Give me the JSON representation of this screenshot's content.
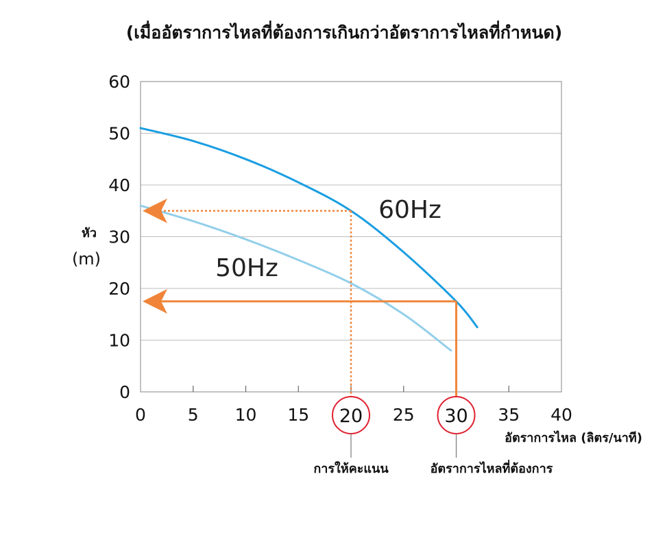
{
  "chart_data": {
    "type": "line",
    "title": "(เมื่ออัตราการไหลที่ต้องการเกินกว่าอัตราการไหลที่กำหนด)",
    "ylabel": "หัว",
    "yunit": "(m)",
    "xlabel": "อัตราการไหล (ลิตร/นาที)",
    "xlim": [
      0,
      40
    ],
    "ylim": [
      0,
      60
    ],
    "x_ticks": [
      "0",
      "5",
      "10",
      "15",
      "20",
      "25",
      "30",
      "35",
      "40"
    ],
    "y_ticks": [
      "0",
      "10",
      "20",
      "30",
      "40",
      "50",
      "60"
    ],
    "grid": "horizontal",
    "series": [
      {
        "name": "60Hz",
        "color": "#1a9ee2",
        "x": [
          0,
          5,
          10,
          15,
          20,
          25,
          30,
          32
        ],
        "y": [
          51,
          48.5,
          45,
          40.5,
          35,
          27,
          17.5,
          12.5
        ]
      },
      {
        "name": "50Hz",
        "color": "#93cfea",
        "x": [
          0,
          5,
          10,
          15,
          20,
          25,
          29.5
        ],
        "y": [
          36,
          33,
          29.5,
          25.5,
          21,
          15,
          8
        ]
      }
    ],
    "annotations": {
      "color": "#f0853a",
      "rated_flow": {
        "x": 20,
        "y": 35,
        "label": "การให้คะแนน",
        "circled_tick": "20"
      },
      "required_flow": {
        "x": 30,
        "y": 17.5,
        "label": "อัตราการไหลที่ต้องการ",
        "circled_tick": "30"
      },
      "highlight_circle_color": "#e02030"
    }
  }
}
